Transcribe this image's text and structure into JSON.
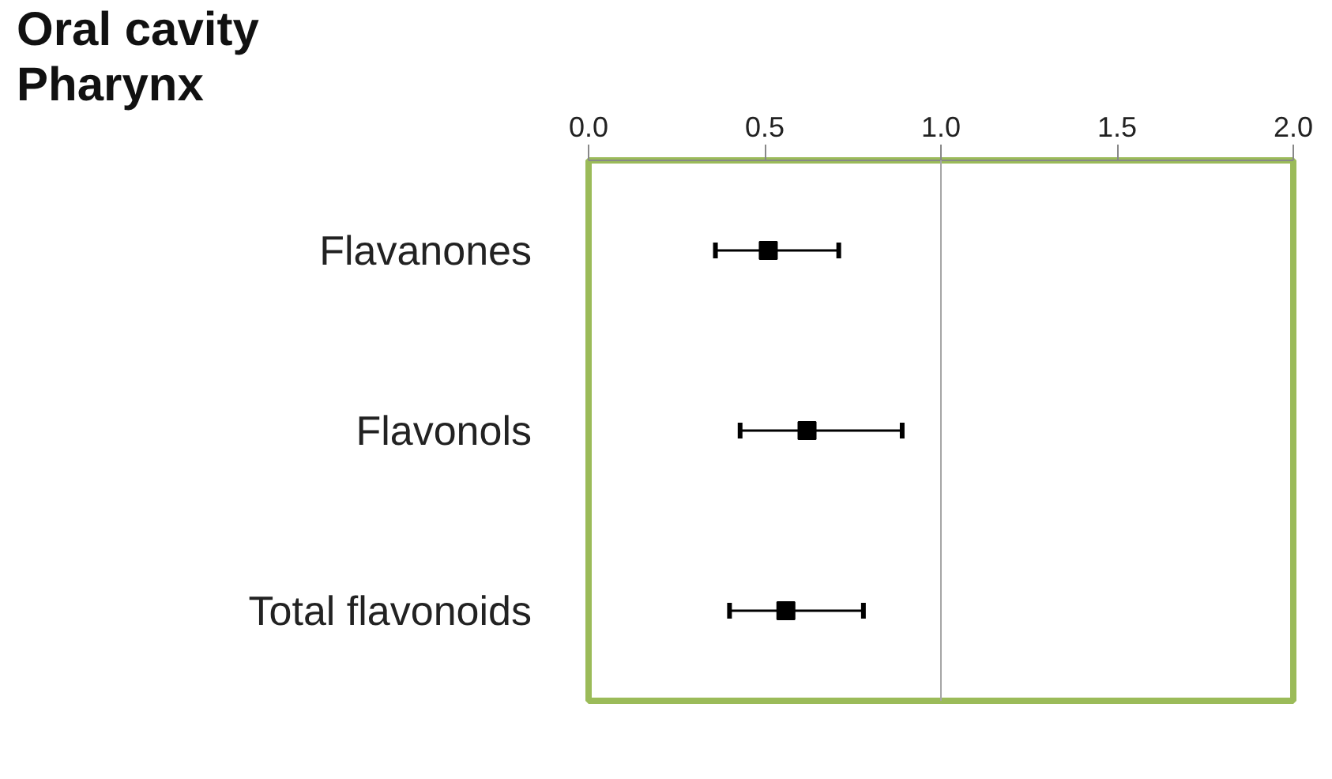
{
  "chart_data": {
    "type": "scatter",
    "title": "Oral cavity",
    "subtitle": "Pharynx",
    "orientation": "horizontal",
    "categories": [
      "Flavanones",
      "Flavonols",
      "Total flavonoids"
    ],
    "values": [
      0.51,
      0.62,
      0.56
    ],
    "errors": [
      [
        0.36,
        0.71
      ],
      [
        0.43,
        0.89
      ],
      [
        0.4,
        0.78
      ]
    ],
    "color": "#000000",
    "marker": "square",
    "xlim": [
      0.0,
      2.0
    ],
    "xticks": [
      {
        "value": 0.0,
        "label": "0.0"
      },
      0.5,
      {
        "value": 1.0,
        "label": "1.0"
      },
      1.5,
      {
        "value": 2.0,
        "label": "2.0"
      }
    ],
    "ref_lines": [
      {
        "axis": "x",
        "value": 1.0,
        "color": "#a6a6a6"
      }
    ],
    "grid": false
  }
}
